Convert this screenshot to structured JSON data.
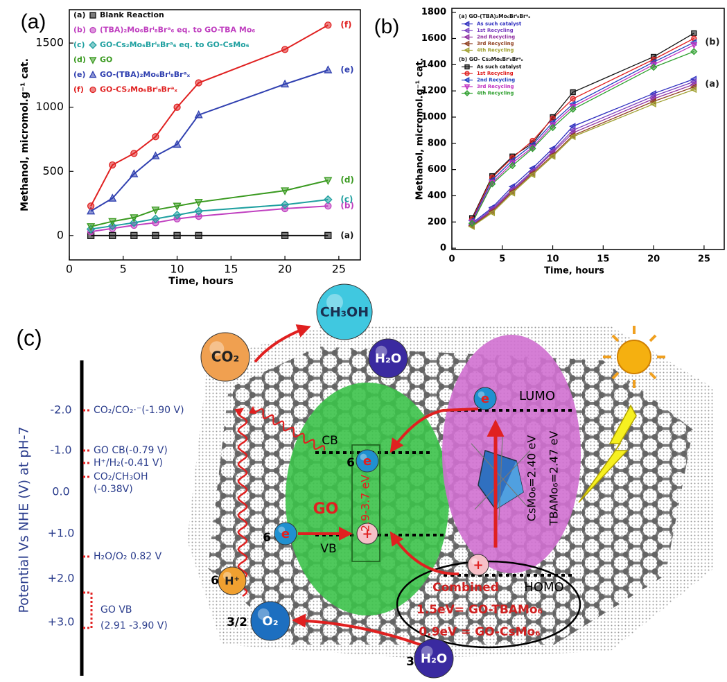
{
  "chart_data": [
    {
      "panel": "(a)",
      "type": "line",
      "x": [
        2,
        4,
        6,
        8,
        10,
        12,
        20,
        24
      ],
      "xlim": [
        0,
        27
      ],
      "xticks": [
        0,
        5,
        10,
        15,
        20,
        25
      ],
      "ylim": [
        -190,
        1760
      ],
      "yticks": [
        0,
        500,
        1000,
        1500
      ],
      "x_label": "Time, hours",
      "y_label": "Methanol, micromol.g⁻¹ cat.",
      "legend": "upper left",
      "series": [
        {
          "label": "(a)",
          "name": "Blank Reaction",
          "color": "#111111",
          "marker": "square",
          "values": [
            0,
            0,
            0,
            0,
            0,
            0,
            0,
            0
          ]
        },
        {
          "label": "(b)",
          "name": "(TBA)₂Mo₆Brⁱ₈Brᵃ₆ eq. to GO-TBA Mo₆",
          "color": "#c040c0",
          "marker": "circle",
          "values": [
            30,
            55,
            80,
            100,
            130,
            150,
            210,
            230
          ]
        },
        {
          "label": "(c)",
          "name": "GO-Cs₂Mo₆Brⁱ₈Brᵃ₆ eq. to GO-CsMo₆",
          "color": "#1fa0a0",
          "marker": "diamond",
          "values": [
            50,
            75,
            100,
            130,
            160,
            190,
            240,
            280
          ]
        },
        {
          "label": "(d)",
          "name": "GO",
          "color": "#3a9a20",
          "marker": "triangle-down",
          "values": [
            70,
            110,
            140,
            200,
            230,
            260,
            350,
            430
          ]
        },
        {
          "label": "(e)",
          "name": "GO-(TBA)₂Mo₆Brⁱ₈Brᵃₓ",
          "color": "#3040b0",
          "marker": "triangle-up",
          "values": [
            190,
            290,
            480,
            620,
            710,
            940,
            1180,
            1290
          ]
        },
        {
          "label": "(f)",
          "name": "GO-CS₂Mo₆Brⁱ₈Brᵃₓ",
          "color": "#e02020",
          "marker": "circle",
          "values": [
            230,
            550,
            640,
            770,
            1000,
            1190,
            1450,
            1640
          ]
        }
      ]
    },
    {
      "panel": "(b)",
      "type": "line",
      "x": [
        2,
        4,
        6,
        8,
        10,
        12,
        20,
        24
      ],
      "xlim": [
        0,
        27
      ],
      "xticks": [
        0,
        5,
        10,
        15,
        20,
        25
      ],
      "ylim": [
        -10,
        1830
      ],
      "yticks": [
        0,
        200,
        400,
        600,
        800,
        1000,
        1200,
        1400,
        1600,
        1800
      ],
      "x_label": "Time, hours",
      "y_label": "Methanol, micromol.g⁻¹ cat.",
      "legend": "upper left",
      "groups": [
        {
          "name": "(a) GO-(TBA)₂Mo₆Brⁱ₈Brᵃₓ",
          "label": "(a)"
        },
        {
          "name": "(b) GO- Cs₂Mo₆Brⁱ₈Brᵃₓ",
          "label": "(b)"
        }
      ],
      "series": [
        {
          "group": 0,
          "name": "As such catalyst",
          "color": "#3030c0",
          "marker": "triangle-left",
          "values": [
            190,
            310,
            470,
            610,
            760,
            930,
            1180,
            1290
          ]
        },
        {
          "group": 0,
          "name": "1st Recycling",
          "color": "#7a40c0",
          "marker": "triangle-left",
          "values": [
            180,
            300,
            450,
            590,
            740,
            900,
            1160,
            1270
          ]
        },
        {
          "group": 0,
          "name": "2nd Recycling",
          "color": "#9030a0",
          "marker": "triangle-left",
          "values": [
            175,
            290,
            440,
            580,
            730,
            880,
            1140,
            1250
          ]
        },
        {
          "group": 0,
          "name": "3rd Recycling",
          "color": "#904020",
          "marker": "triangle-left",
          "values": [
            170,
            280,
            430,
            570,
            710,
            860,
            1120,
            1230
          ]
        },
        {
          "group": 0,
          "name": "4th Recycling",
          "color": "#a0a030",
          "marker": "triangle-left",
          "values": [
            165,
            270,
            420,
            560,
            700,
            850,
            1100,
            1210
          ]
        },
        {
          "group": 1,
          "name": "As such catalyst",
          "color": "#111111",
          "marker": "square",
          "values": [
            230,
            550,
            700,
            800,
            1000,
            1190,
            1460,
            1640
          ]
        },
        {
          "group": 1,
          "name": "1st Recycling",
          "color": "#e02020",
          "marker": "circle",
          "values": [
            220,
            540,
            690,
            820,
            990,
            1140,
            1440,
            1600
          ]
        },
        {
          "group": 1,
          "name": "2nd Recycling",
          "color": "#2040c0",
          "marker": "triangle-left",
          "values": [
            210,
            520,
            670,
            790,
            960,
            1100,
            1420,
            1570
          ]
        },
        {
          "group": 1,
          "name": "3rd Recycling",
          "color": "#c030c0",
          "marker": "triangle-down",
          "values": [
            200,
            500,
            650,
            770,
            940,
            1080,
            1400,
            1550
          ]
        },
        {
          "group": 1,
          "name": "4th Recycling",
          "color": "#30a030",
          "marker": "diamond",
          "values": [
            190,
            490,
            630,
            760,
            920,
            1060,
            1380,
            1500
          ]
        }
      ]
    }
  ],
  "diagram": {
    "panel": "(c)",
    "axis_title": "Potential Vs NHE (V)  at pH-7",
    "axis_ticks": [
      "-2.0",
      "-1.0",
      "0.0",
      "+1.0",
      "+2.0",
      "+3.0"
    ],
    "potentials": [
      "CO₂/CO₂·⁻(-1.90 V)",
      "GO CB(-0.79 V)",
      "H⁺/H₂(-0.41 V)",
      "CO₂/CH₃OH",
      "(-0.38V)",
      "H₂O/O₂ 0.82 V",
      "GO VB",
      "(2.91 -3.90 V)"
    ],
    "species": {
      "ch3oh": "CH₃OH",
      "h2o_top": "H₂O",
      "co2": "CO₂",
      "h_plus": "H⁺",
      "o2": "O₂",
      "h2o_bottom": "H₂O",
      "electron": "e",
      "hole": "+"
    },
    "coefficients": {
      "h_plus": "6",
      "electron_vb": "6",
      "electron_cb": "6",
      "o2": "3/2",
      "h2o": "3"
    },
    "levels": {
      "cb": "CB",
      "vb": "VB",
      "lumo": "LUMO",
      "homo": "HOMO"
    },
    "go": "GO",
    "go_gap": "2.9-3.7 eV",
    "cs_gap": "CsMo₆=2.40 eV",
    "tba_gap": "TBAMo₆=2.47 eV",
    "combined": [
      "Combined",
      "1.5eV= GO-TBAMo₆",
      "0.9eV = GO-CsMo₆"
    ]
  }
}
